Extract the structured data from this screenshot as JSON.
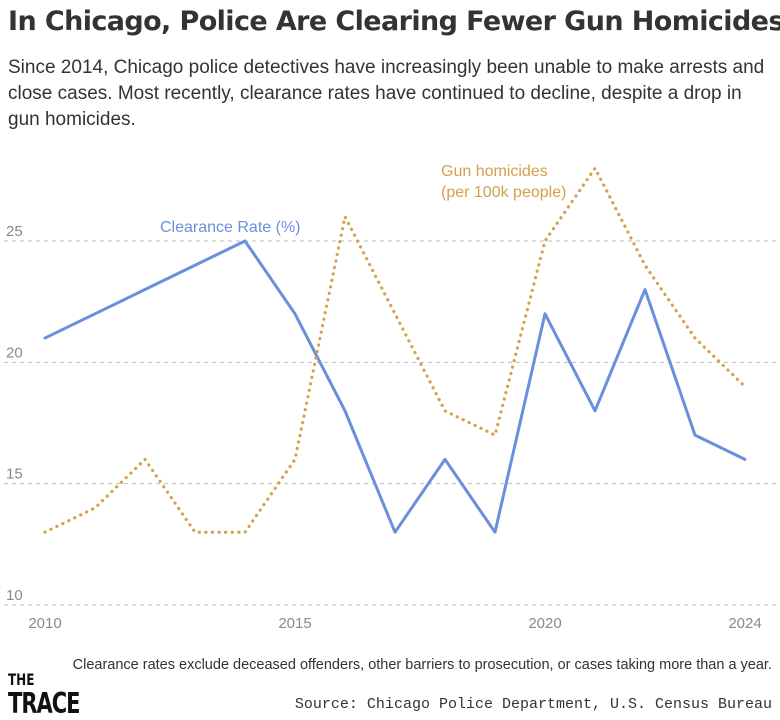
{
  "header": {
    "title": "In Chicago, Police Are Clearing Fewer Gun Homicides",
    "subtitle": "Since 2014, Chicago police detectives have increasingly been unable to make arrests and close  cases. Most recently, clearance rates have continued to decline, despite a drop in gun homicides."
  },
  "footer": {
    "note": "Clearance rates exclude deceased offenders, other barriers to prosecution, or cases taking more than a year.",
    "source": "Source: Chicago Police Department, U.S. Census Bureau",
    "logo_line1": "THE",
    "logo_line2": "TRACE"
  },
  "chart_data": {
    "type": "line",
    "title": "In Chicago, Police Are Clearing Fewer Gun Homicides",
    "x": [
      2010,
      2011,
      2012,
      2013,
      2014,
      2015,
      2016,
      2017,
      2018,
      2019,
      2020,
      2021,
      2022,
      2023,
      2024
    ],
    "xticks": [
      "2010",
      "2015",
      "2020",
      "2024"
    ],
    "xlim": [
      2010,
      2024
    ],
    "ylim": [
      10,
      28
    ],
    "yticks": [
      "10",
      "15",
      "20",
      "25"
    ],
    "grid": "horizontal dashed",
    "series": [
      {
        "name": "Clearance Rate (%)",
        "label_lines": [
          "Clearance Rate (%)"
        ],
        "color": "#6a8fdc",
        "style": "solid",
        "values": [
          21,
          22,
          23,
          24,
          25,
          22,
          18,
          13,
          16,
          13,
          22,
          18,
          23,
          17,
          16
        ]
      },
      {
        "name": "Gun homicides (per 100k people)",
        "label_lines": [
          "Gun homicides",
          "(per 100k people)"
        ],
        "color": "#d4a04a",
        "style": "dotted",
        "values": [
          13,
          14,
          16,
          13,
          13,
          16,
          26,
          22,
          18,
          17,
          25,
          28,
          24,
          21,
          19
        ]
      }
    ]
  }
}
